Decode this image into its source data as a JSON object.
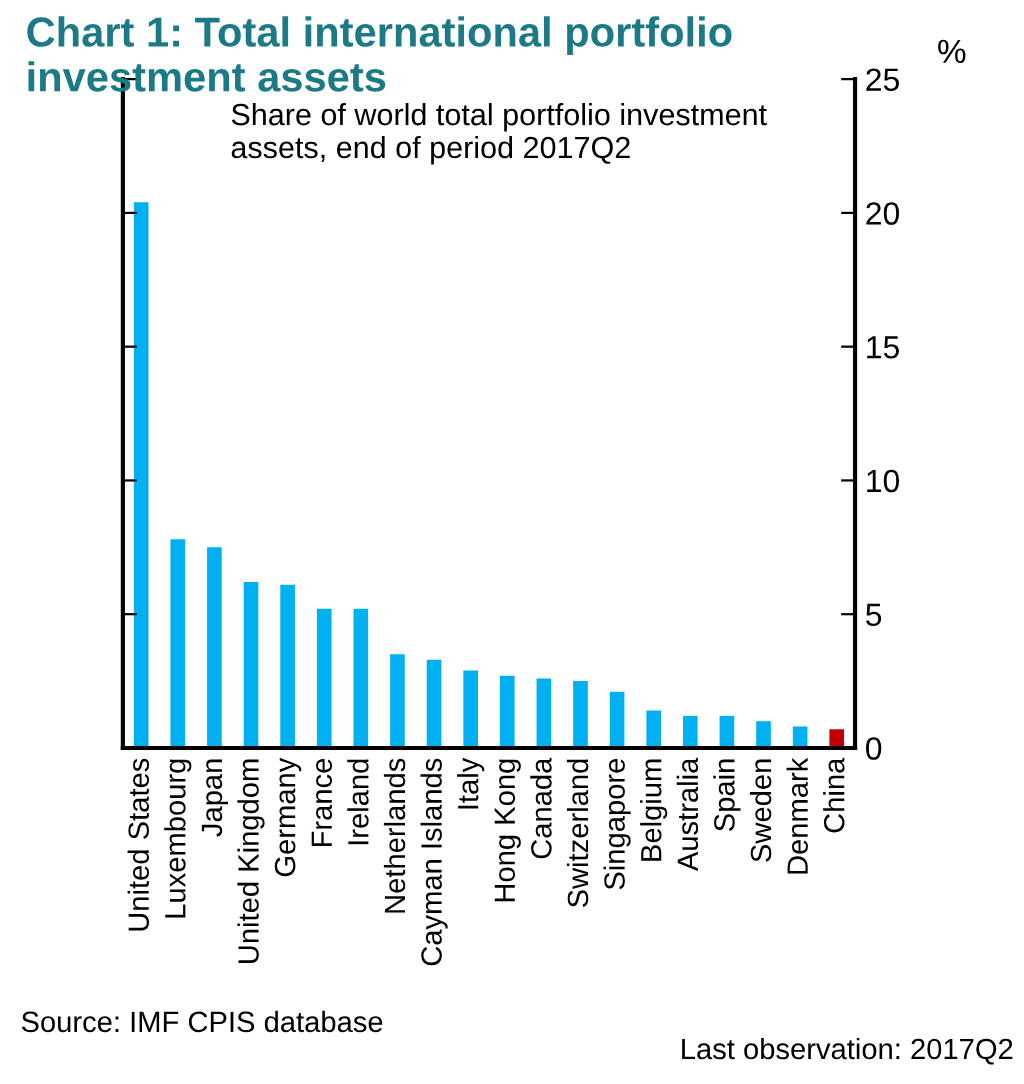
{
  "chart_data": {
    "type": "bar",
    "title": "Chart 1: Total international portfolio investment assets",
    "subtitle": "Share of world total portfolio investment assets, end of period 2017Q2",
    "ylabel": "%",
    "categories": [
      "United States",
      "Luxembourg",
      "Japan",
      "United Kingdom",
      "Germany",
      "France",
      "Ireland",
      "Netherlands",
      "Cayman Islands",
      "Italy",
      "Hong Kong",
      "Canada",
      "Switzerland",
      "Singapore",
      "Belgium",
      "Australia",
      "Spain",
      "Sweden",
      "Denmark",
      "China"
    ],
    "values": [
      20.4,
      7.8,
      7.5,
      6.2,
      6.1,
      5.2,
      5.2,
      3.5,
      3.3,
      2.9,
      2.7,
      2.6,
      2.5,
      2.1,
      1.4,
      1.2,
      1.2,
      1.0,
      0.8,
      0.7
    ],
    "colors": [
      "#00b0f0",
      "#00b0f0",
      "#00b0f0",
      "#00b0f0",
      "#00b0f0",
      "#00b0f0",
      "#00b0f0",
      "#00b0f0",
      "#00b0f0",
      "#00b0f0",
      "#00b0f0",
      "#00b0f0",
      "#00b0f0",
      "#00b0f0",
      "#00b0f0",
      "#00b0f0",
      "#00b0f0",
      "#00b0f0",
      "#00b0f0",
      "#c00000"
    ],
    "ylim": [
      0,
      25
    ],
    "yticks": [
      0,
      5,
      10,
      15,
      20,
      25
    ],
    "grid": false,
    "legend": false,
    "annotations": [
      "Source: IMF CPIS database",
      "Last observation: 2017Q2"
    ]
  }
}
